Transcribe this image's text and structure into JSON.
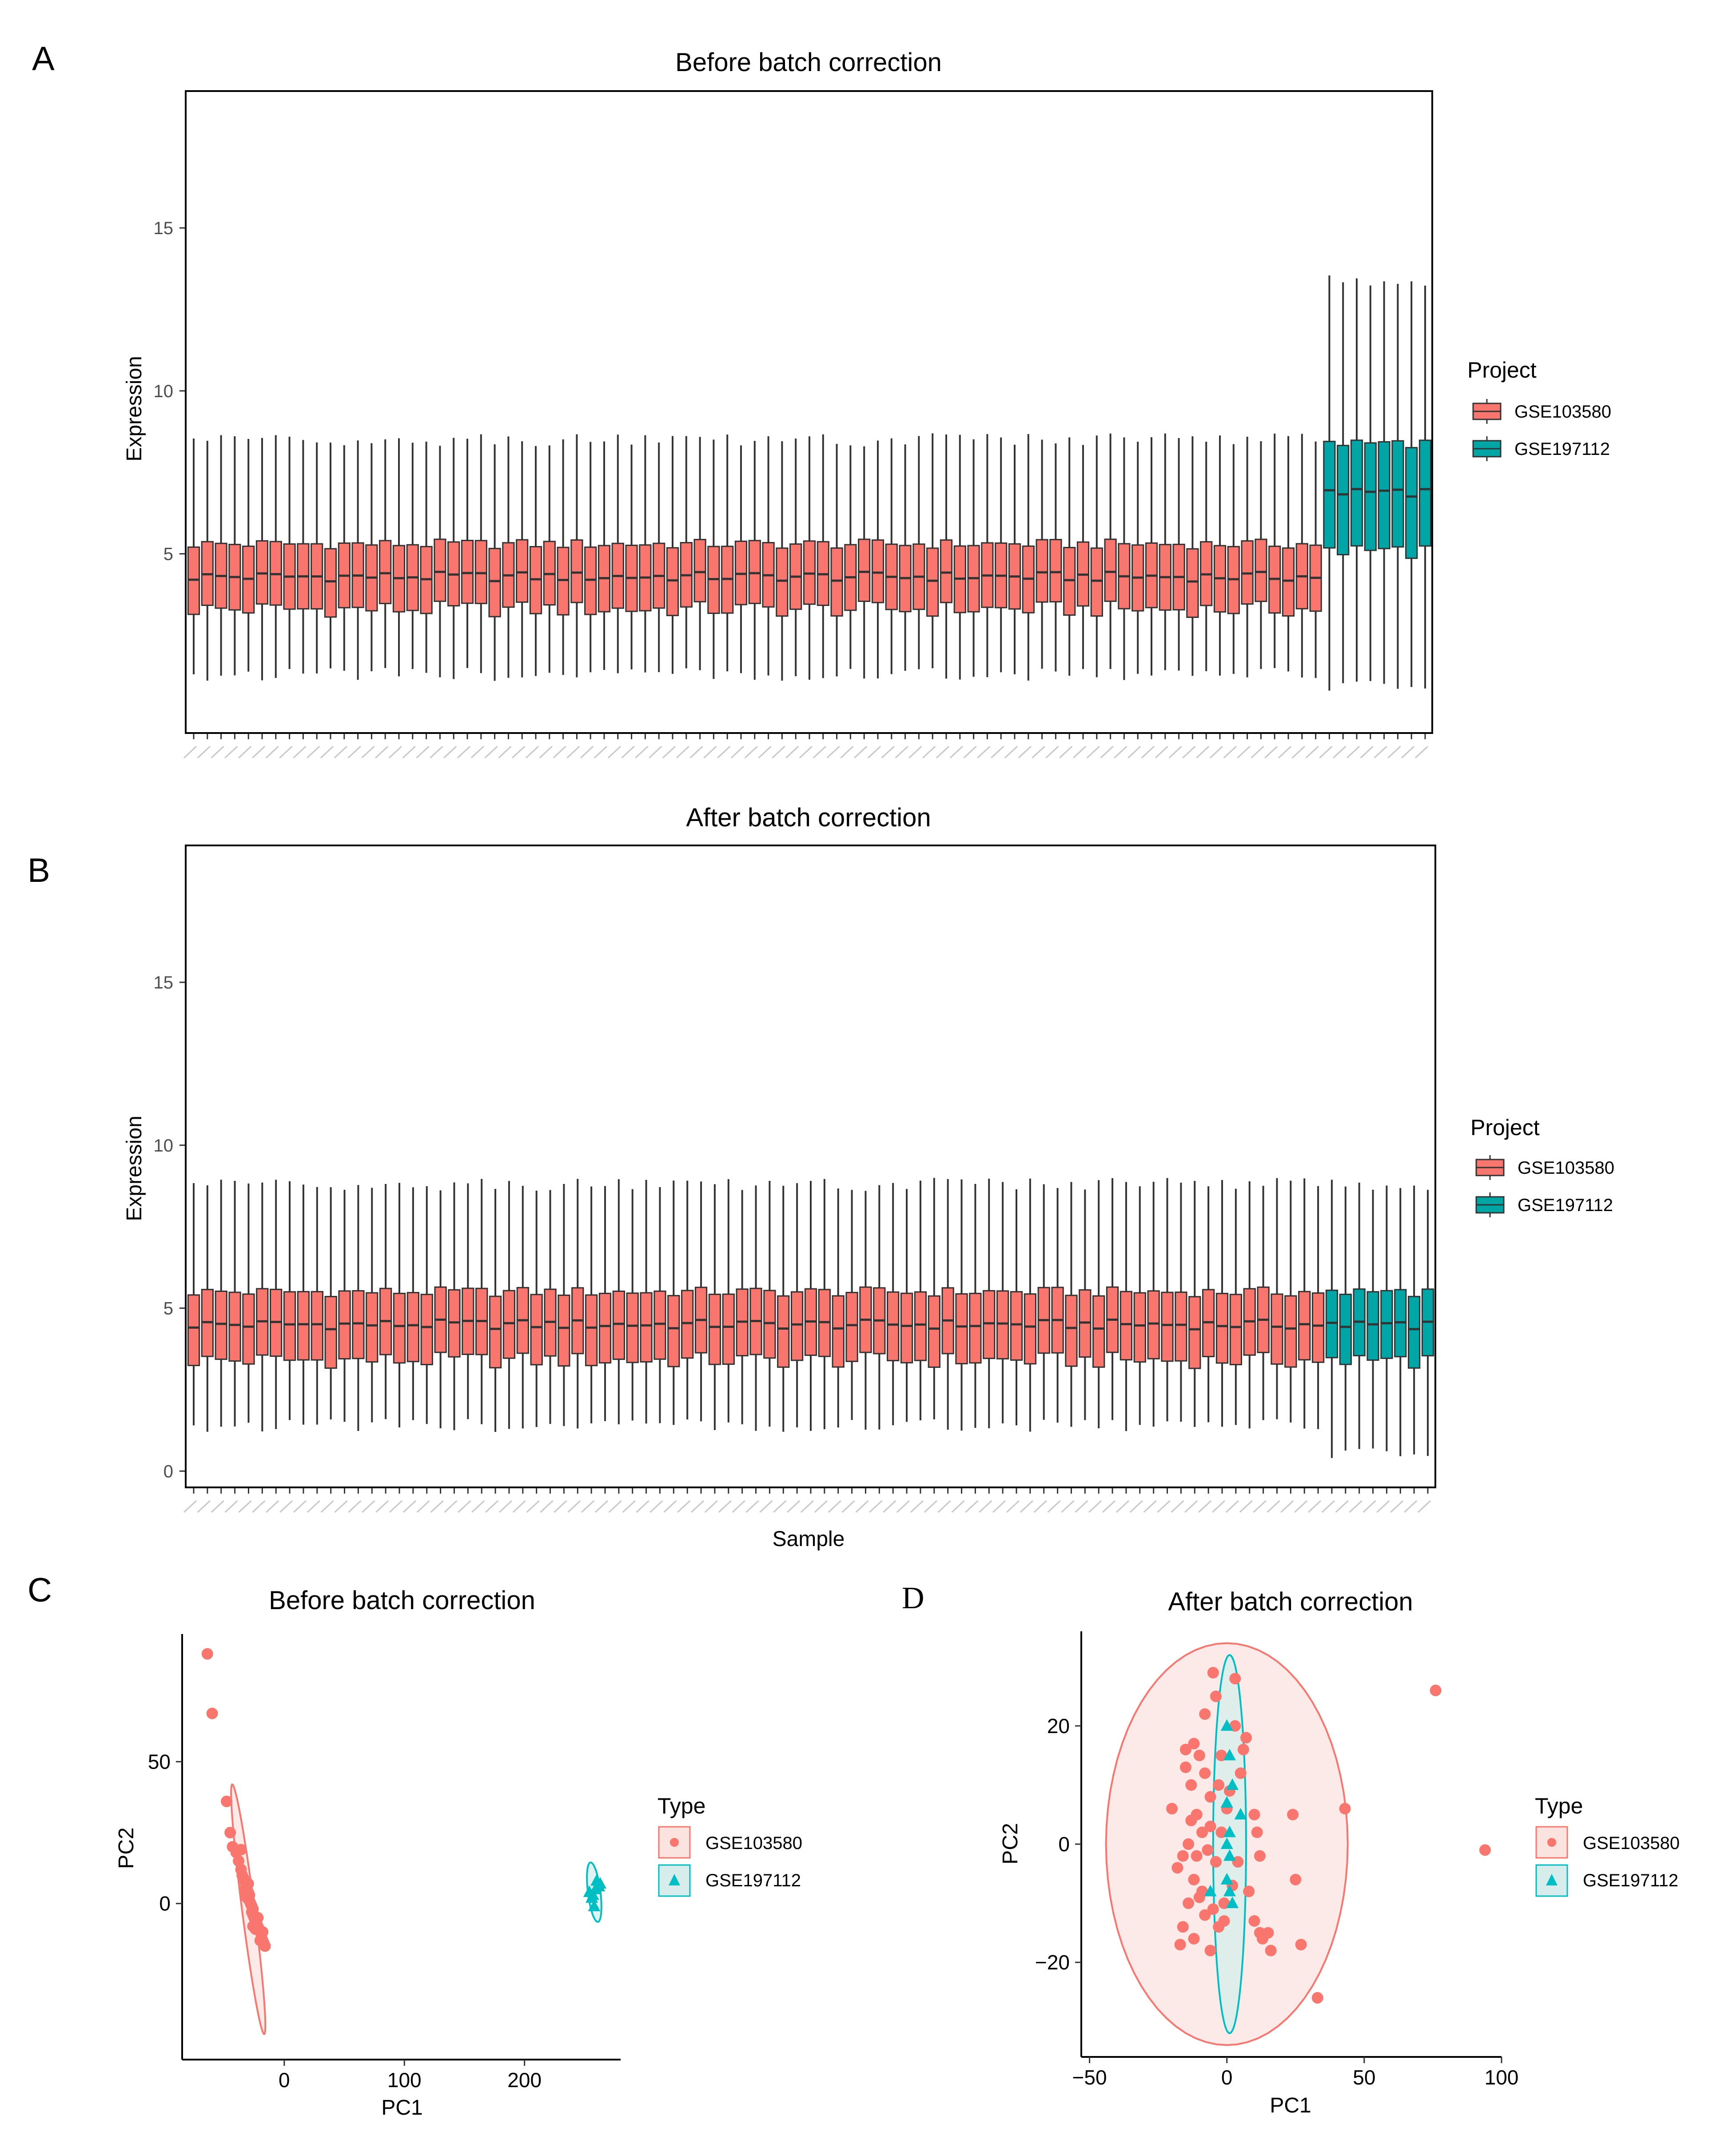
{
  "figure_letters": {
    "a": "A",
    "b": "B",
    "c": "C",
    "d": "D"
  },
  "colors": {
    "GSE103580": "#F8766D",
    "GSE197112": "#00BFC4",
    "GSE197112_fill": "#00A6A6",
    "ellipse_fill_red": "#FBE3E0",
    "ellipse_fill_teal": "#D6EDEC"
  },
  "chart_data": [
    {
      "id": "A",
      "type": "box",
      "title": "Before batch correction",
      "xlabel": "",
      "ylabel": "Expression",
      "ylim": [
        -0.5,
        19.2
      ],
      "yticks": [
        5,
        10,
        15
      ],
      "legend": {
        "title": "Project",
        "entries": [
          "GSE103580",
          "GSE197112"
        ],
        "position": "right"
      },
      "groups": [
        {
          "name": "GSE103580",
          "n_samples": 83,
          "median": 4.3,
          "q1": 3.3,
          "q3": 5.3,
          "whisker_low": 1.3,
          "whisker_high": 8.5
        },
        {
          "name": "GSE197112",
          "n_samples": 8,
          "median": 6.9,
          "q1": 5.1,
          "q3": 8.4,
          "whisker_low": 1.0,
          "whisker_high": 13.4
        }
      ]
    },
    {
      "id": "B",
      "type": "box",
      "title": "After batch correction",
      "xlabel": "Sample",
      "ylabel": "Expression",
      "ylim": [
        -0.5,
        19.2
      ],
      "yticks": [
        0,
        5,
        10,
        15
      ],
      "legend": {
        "title": "Project",
        "entries": [
          "GSE103580",
          "GSE197112"
        ],
        "position": "right"
      },
      "groups": [
        {
          "name": "GSE103580",
          "n_samples": 83,
          "median": 4.5,
          "q1": 3.4,
          "q3": 5.5,
          "whisker_low": 1.4,
          "whisker_high": 8.8
        },
        {
          "name": "GSE197112",
          "n_samples": 8,
          "median": 4.5,
          "q1": 3.4,
          "q3": 5.5,
          "whisker_low": 0.6,
          "whisker_high": 8.8
        }
      ]
    },
    {
      "id": "C",
      "type": "scatter",
      "title": "Before batch correction",
      "xlabel": "PC1",
      "ylabel": "PC2",
      "xlim": [
        -85,
        280
      ],
      "ylim": [
        -55,
        95
      ],
      "xticks": [
        0,
        100,
        200
      ],
      "yticks": [
        0,
        50
      ],
      "xtick_labels": [
        "0",
        "100",
        "200"
      ],
      "ytick_labels": [
        "0",
        "50"
      ],
      "legend": {
        "title": "Type",
        "entries": [
          "GSE103580",
          "GSE197112"
        ],
        "position": "right"
      },
      "series": [
        {
          "name": "GSE103580",
          "marker": "circle",
          "points": [
            [
              -64,
              88
            ],
            [
              -60,
              67
            ],
            [
              -48,
              36
            ],
            [
              -45,
              25
            ],
            [
              -43,
              20
            ],
            [
              -40,
              18
            ],
            [
              -38,
              15
            ],
            [
              -36,
              12
            ],
            [
              -35,
              10
            ],
            [
              -34,
              9
            ],
            [
              -33,
              8
            ],
            [
              -32,
              6
            ],
            [
              -31,
              5
            ],
            [
              -30,
              4
            ],
            [
              -29,
              3
            ],
            [
              -29,
              1
            ],
            [
              -28,
              0
            ],
            [
              -27,
              -1
            ],
            [
              -26,
              -2
            ],
            [
              -26,
              -4
            ],
            [
              -25,
              -5
            ],
            [
              -24,
              -6
            ],
            [
              -23,
              -7
            ],
            [
              -22,
              -8
            ],
            [
              -21,
              -9
            ],
            [
              -20,
              -10
            ],
            [
              -19,
              -12
            ],
            [
              -18,
              -13
            ],
            [
              -17,
              -14
            ],
            [
              -16,
              -15
            ],
            [
              -31,
              2
            ],
            [
              -27,
              -3
            ],
            [
              -24,
              -9
            ],
            [
              -20,
              -13
            ],
            [
              -33,
              4
            ],
            [
              -22,
              -5
            ],
            [
              -18,
              -10
            ],
            [
              -30,
              7
            ],
            [
              -36,
              19
            ],
            [
              -26,
              -8
            ]
          ],
          "ellipse": {
            "cx": -30,
            "cy": -2,
            "rx_along": 46,
            "ry_across": 5,
            "angle_deg": -73
          }
        },
        {
          "name": "GSE197112",
          "marker": "triangle",
          "points": [
            [
              256,
              2
            ],
            [
              260,
              8
            ],
            [
              262,
              6
            ],
            [
              258,
              -1
            ],
            [
              254,
              4
            ],
            [
              259,
              5
            ],
            [
              263,
              7
            ],
            [
              257,
              3
            ]
          ],
          "ellipse": {
            "cx": 258,
            "cy": 4,
            "rx_along": 11,
            "ry_across": 5,
            "angle_deg": -70
          }
        }
      ]
    },
    {
      "id": "D",
      "type": "scatter",
      "title": "After batch correction",
      "xlabel": "PC1",
      "ylabel": "PC2",
      "xlim": [
        -53,
        100
      ],
      "ylim": [
        -36,
        36
      ],
      "xticks": [
        -50,
        0,
        50,
        100
      ],
      "yticks": [
        -20,
        0,
        20
      ],
      "xtick_labels": [
        "−50",
        "0",
        "50",
        "100"
      ],
      "ytick_labels": [
        "−20",
        "0",
        "20"
      ],
      "legend": {
        "title": "Type",
        "entries": [
          "GSE103580",
          "GSE197112"
        ],
        "position": "right"
      },
      "series": [
        {
          "name": "GSE103580",
          "marker": "circle",
          "points": [
            [
              76,
              26
            ],
            [
              94,
              -1
            ],
            [
              43,
              6
            ],
            [
              33,
              -26
            ],
            [
              27,
              -17
            ],
            [
              25,
              -6
            ],
            [
              24,
              5
            ],
            [
              16,
              -18
            ],
            [
              15,
              -15
            ],
            [
              13,
              -16
            ],
            [
              12,
              -15
            ],
            [
              10,
              -13
            ],
            [
              12,
              -2
            ],
            [
              11,
              2
            ],
            [
              10,
              5
            ],
            [
              8,
              -8
            ],
            [
              6,
              16
            ],
            [
              5,
              12
            ],
            [
              7,
              18
            ],
            [
              3,
              28
            ],
            [
              -5,
              29
            ],
            [
              -4,
              25
            ],
            [
              -2,
              15
            ],
            [
              -3,
              10
            ],
            [
              -6,
              8
            ],
            [
              -8,
              12
            ],
            [
              -10,
              15
            ],
            [
              -12,
              17
            ],
            [
              -15,
              16
            ],
            [
              -13,
              10
            ],
            [
              -11,
              5
            ],
            [
              -9,
              2
            ],
            [
              -14,
              0
            ],
            [
              -16,
              -2
            ],
            [
              -18,
              -4
            ],
            [
              -12,
              -6
            ],
            [
              -10,
              -9
            ],
            [
              -14,
              -10
            ],
            [
              -8,
              -12
            ],
            [
              -16,
              -14
            ],
            [
              -12,
              -16
            ],
            [
              -17,
              -17
            ],
            [
              -6,
              -18
            ],
            [
              -3,
              -14
            ],
            [
              -1,
              -10
            ],
            [
              2,
              -7
            ],
            [
              -4,
              -3
            ],
            [
              -2,
              2
            ],
            [
              0,
              6
            ],
            [
              -7,
              -1
            ],
            [
              -9,
              -8
            ],
            [
              -5,
              -11
            ],
            [
              -20,
              6
            ],
            [
              -13,
              4
            ],
            [
              -11,
              -2
            ],
            [
              -6,
              3
            ],
            [
              4,
              -3
            ],
            [
              -1,
              -13
            ],
            [
              3,
              20
            ],
            [
              -8,
              22
            ],
            [
              -15,
              13
            ],
            [
              1,
              9
            ]
          ],
          "ellipse": {
            "cx": 0,
            "cy": 0,
            "rx_along": 44,
            "ry_across": 34,
            "angle_deg": 0
          }
        },
        {
          "name": "GSE197112",
          "marker": "triangle",
          "points": [
            [
              0,
              20
            ],
            [
              1,
              15
            ],
            [
              2,
              10
            ],
            [
              0,
              7
            ],
            [
              5,
              5
            ],
            [
              1,
              2
            ],
            [
              1,
              -2
            ],
            [
              0,
              -6
            ],
            [
              1,
              -8
            ],
            [
              -6,
              -8
            ],
            [
              2,
              -10
            ],
            [
              0,
              0
            ]
          ],
          "ellipse": {
            "cx": 1,
            "cy": 0,
            "rx_along": 6,
            "ry_across": 32,
            "angle_deg": 0
          }
        }
      ]
    }
  ]
}
